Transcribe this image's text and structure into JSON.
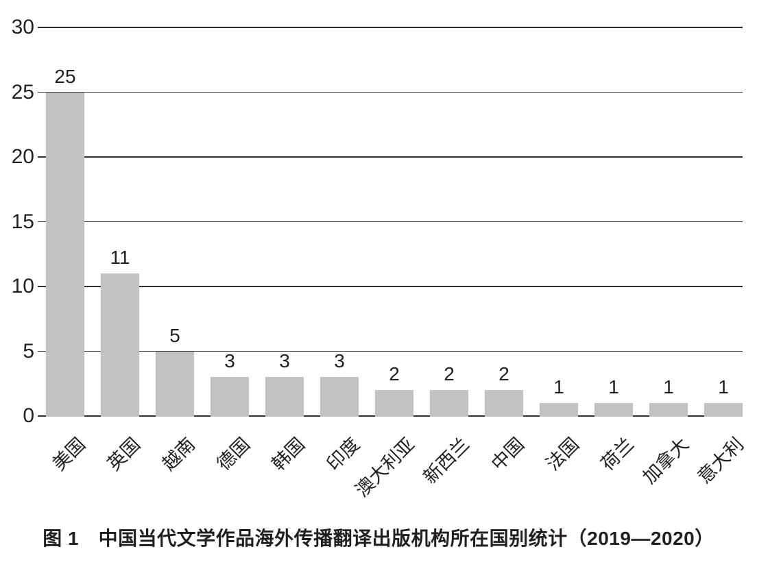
{
  "figure": {
    "caption": "图 1　中国当代文学作品海外传播翻译出版机构所在国别统计（2019—2020）"
  },
  "chart_data": {
    "type": "bar",
    "title": "图 1　中国当代文学作品海外传播翻译出版机构所在国别统计（2019—2020）",
    "categories": [
      "美国",
      "英国",
      "越南",
      "德国",
      "韩国",
      "印度",
      "澳大利亚",
      "新西兰",
      "中国",
      "法国",
      "荷兰",
      "加拿大",
      "意大利"
    ],
    "values": [
      25,
      11,
      5,
      3,
      3,
      3,
      2,
      2,
      2,
      1,
      1,
      1,
      1
    ],
    "value_labels": [
      "25",
      "11",
      "5",
      "3",
      "3",
      "3",
      "2",
      "2",
      "2",
      "1",
      "1",
      "1",
      "1"
    ],
    "xlabel": "",
    "ylabel": "",
    "ylim": [
      0,
      30
    ],
    "yticks": [
      0,
      5,
      10,
      15,
      20,
      25,
      30
    ],
    "ytick_labels": [
      "0",
      "5",
      "10",
      "15",
      "20",
      "25",
      "30"
    ],
    "grid": true,
    "legend": "none",
    "x_label_rotation": -45,
    "bar_color": "#c1c2c4",
    "text_color": "#231f20",
    "gridline_color": "#332f30",
    "background_color": "#ffffff"
  }
}
